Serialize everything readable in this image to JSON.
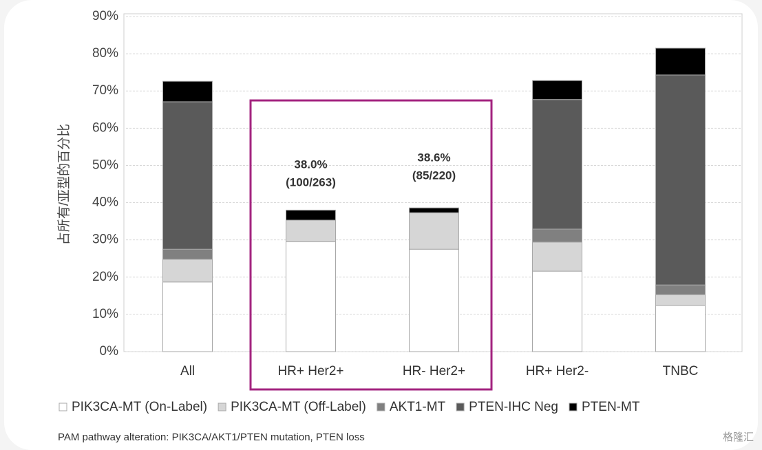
{
  "chart_data": {
    "type": "stacked_bar",
    "y_label": "占所有/亚型的百分比",
    "categories": [
      "All",
      "HR+ Her2+",
      "HR- Her2+",
      "HR+ Her2-",
      "TNBC"
    ],
    "series": [
      {
        "name": "PIK3CA-MT (On-Label)",
        "color": "#ffffff",
        "values": [
          18.7,
          29.5,
          27.5,
          21.6,
          12.4
        ]
      },
      {
        "name": "PIK3CA-MT (Off-Label)",
        "color": "#d6d6d6",
        "values": [
          6.1,
          5.8,
          9.8,
          7.8,
          2.9
        ]
      },
      {
        "name": "AKT1-MT",
        "color": "#808080",
        "values": [
          2.7,
          0,
          0,
          3.5,
          2.6
        ]
      },
      {
        "name": "PTEN-IHC Neg",
        "color": "#5a5a5a",
        "values": [
          39.6,
          0,
          0,
          34.8,
          56.4
        ]
      },
      {
        "name": "PTEN-MT",
        "color": "#000000",
        "values": [
          5.5,
          2.7,
          1.3,
          5.1,
          7.2
        ]
      }
    ],
    "ylim": [
      0,
      90
    ],
    "yticks": [
      {
        "value": 0,
        "label": "0%"
      },
      {
        "value": 10,
        "label": "10%"
      },
      {
        "value": 20,
        "label": "20%"
      },
      {
        "value": 30,
        "label": "30%"
      },
      {
        "value": 40,
        "label": "40%"
      },
      {
        "value": 50,
        "label": "50%"
      },
      {
        "value": 60,
        "label": "60%"
      },
      {
        "value": 70,
        "label": "70%"
      },
      {
        "value": 80,
        "label": "80%"
      },
      {
        "value": 90,
        "label": "90%"
      }
    ],
    "grid": true,
    "annotations": [
      "38.0%",
      "(100/263)",
      "38.6%",
      "(85/220)"
    ],
    "footnote": "PAM pathway alteration: PIK3CA/AKT1/PTEN mutation, PTEN loss",
    "watermark": "格隆汇"
  }
}
